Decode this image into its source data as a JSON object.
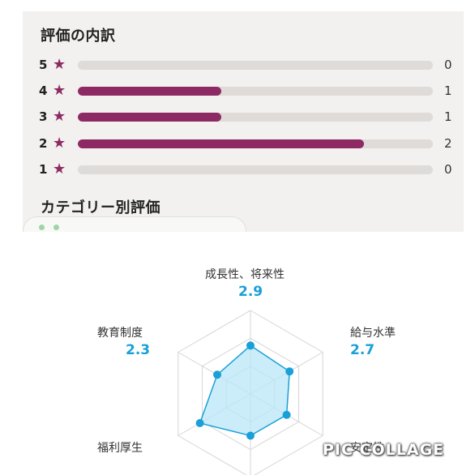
{
  "rating_breakdown": {
    "title": "評価の内訳",
    "rows": [
      {
        "stars": "5",
        "count": "0",
        "fraction": 0.0
      },
      {
        "stars": "4",
        "count": "1",
        "fraction": 0.405
      },
      {
        "stars": "3",
        "count": "1",
        "fraction": 0.405
      },
      {
        "stars": "2",
        "count": "2",
        "fraction": 0.807
      },
      {
        "stars": "1",
        "count": "0",
        "fraction": 0.0
      }
    ],
    "star_icon": "star-icon",
    "accent_color": "#8e2a63"
  },
  "category_section": {
    "title": "カテゴリー別評価"
  },
  "chart_data": {
    "type": "radar",
    "categories": [
      "成長性、将来性",
      "給与水準",
      "安定性",
      "福利厚生",
      "教育制度"
    ],
    "labels": {
      "growth": "成長性、将来性",
      "salary": "給与水準",
      "stability": "安定性",
      "welfare": "福利厚生",
      "education": "教育制度"
    },
    "scores": {
      "growth": "2.9",
      "salary": "2.7",
      "education": "2.3"
    },
    "series": [
      {
        "values": {
          "growth": 2.9,
          "salary": 2.7,
          "salary_low": 2.5,
          "stability": 2.5,
          "welfare": 3.5,
          "education": 2.3
        }
      }
    ],
    "fill_color": "#b9e6f7",
    "line_color": "#1aa0d8"
  },
  "watermark": "PIC COLLAGE"
}
